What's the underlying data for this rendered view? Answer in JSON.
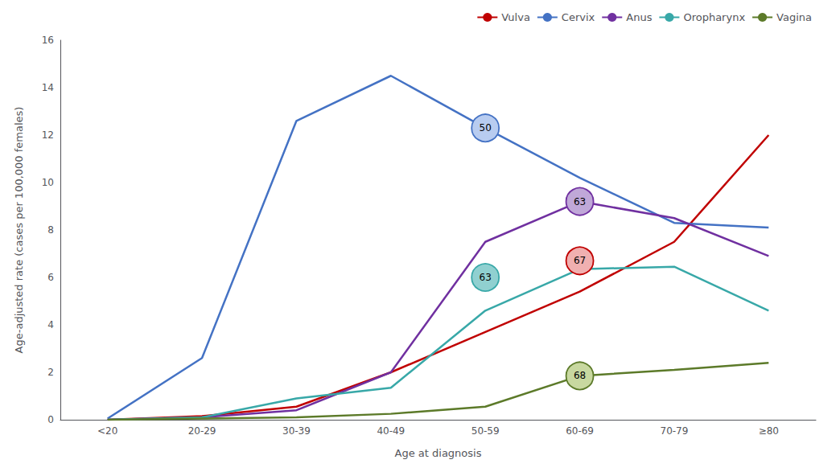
{
  "chart_data": {
    "type": "line",
    "categories": [
      "<20",
      "20-29",
      "30-39",
      "40-49",
      "50-59",
      "60-69",
      "70-79",
      "≥80"
    ],
    "series": [
      {
        "name": "Vulva",
        "color": "#C00000",
        "values": [
          0.0,
          0.15,
          0.55,
          2.0,
          3.7,
          5.4,
          7.5,
          12.0
        ]
      },
      {
        "name": "Cervix",
        "color": "#4472C4",
        "values": [
          0.05,
          2.6,
          12.6,
          14.5,
          12.3,
          10.2,
          8.3,
          8.1
        ]
      },
      {
        "name": "Anus",
        "color": "#7030A0",
        "values": [
          0.0,
          0.1,
          0.4,
          2.0,
          7.5,
          9.2,
          8.5,
          6.9
        ]
      },
      {
        "name": "Oropharynx",
        "color": "#38A8A8",
        "values": [
          0.0,
          0.1,
          0.9,
          1.35,
          4.6,
          6.35,
          6.45,
          4.6
        ]
      },
      {
        "name": "Vagina",
        "color": "#5C7A29",
        "values": [
          0.0,
          0.05,
          0.1,
          0.25,
          0.55,
          1.85,
          2.1,
          2.4
        ]
      }
    ],
    "xlabel": "Age at diagnosis",
    "ylabel": "Age-adjusted rate (cases per 100,000 females)",
    "ylim": [
      0,
      16
    ],
    "yticks": [
      0,
      2,
      4,
      6,
      8,
      10,
      12,
      14,
      16
    ],
    "grid": false,
    "legend": "upper right",
    "annotations": [
      {
        "text": "68",
        "series": "Vagina",
        "x": "60-69",
        "y": 1.85,
        "color": "#C8D8A0"
      },
      {
        "text": "63",
        "series": "Oropharynx",
        "x": "50-59",
        "y": 6.0,
        "color": "#90D0D0"
      },
      {
        "text": "67",
        "series": "Vulva",
        "x": "60-69",
        "y": 6.7,
        "color": "#F0B0B0"
      },
      {
        "text": "63",
        "series": "Anus",
        "x": "60-69",
        "y": 9.2,
        "color": "#C0A8D8"
      },
      {
        "text": "50",
        "series": "Cervix",
        "x": "50-59",
        "y": 12.3,
        "color": "#B8CCF0"
      }
    ]
  }
}
